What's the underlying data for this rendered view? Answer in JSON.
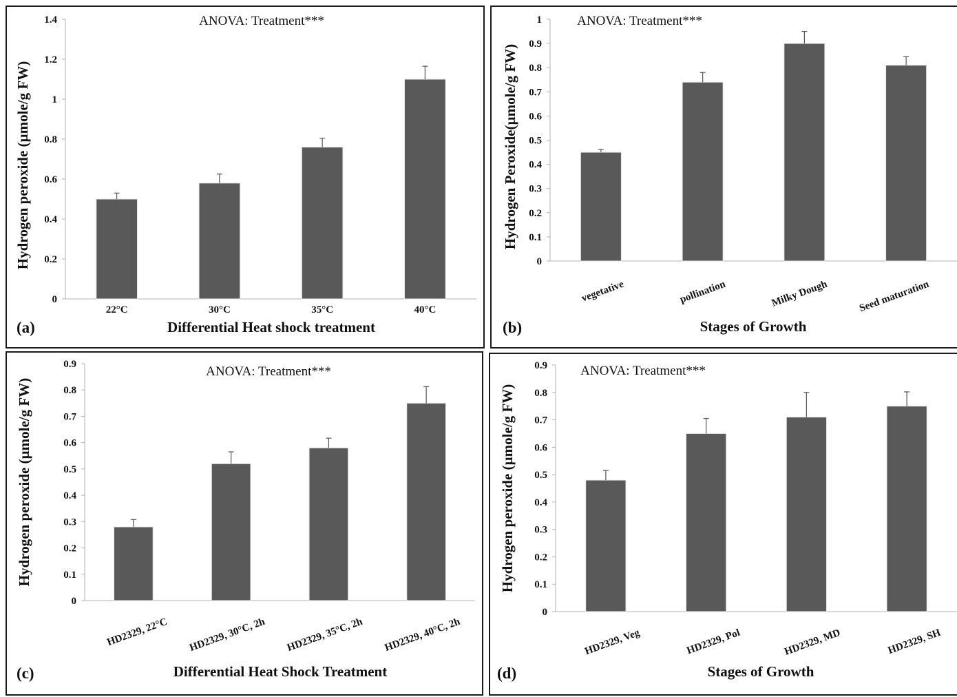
{
  "chart_data": [
    {
      "panel_label": "(a)",
      "type": "bar",
      "annotation": "ANOVA: Treatment***",
      "title": "",
      "xlabel": "Differential Heat shock treatment",
      "ylabel": "Hydrogen peroxide (µmole/g FW)",
      "categories": [
        "22°C",
        "30°C",
        "35°C",
        "40°C"
      ],
      "values": [
        0.5,
        0.58,
        0.76,
        1.1
      ],
      "errors": [
        0.03,
        0.045,
        0.045,
        0.065
      ],
      "ylim": [
        0,
        1.4
      ],
      "yticks": [
        "0",
        "0.2",
        "0.4",
        "0.6",
        "0.8",
        "1",
        "1.2",
        "1.4"
      ],
      "tick_label_rotation": 0,
      "bar_color": "#595959",
      "grid": false
    },
    {
      "panel_label": "(b)",
      "type": "bar",
      "annotation": "ANOVA: Treatment***",
      "title": "",
      "xlabel": "Stages of Growth",
      "ylabel": "Hydrogen Peroxide(µmole/g FW)",
      "categories": [
        "vegetative",
        "pollination",
        "Milky Dough",
        "Seed maturation"
      ],
      "values": [
        0.45,
        0.74,
        0.9,
        0.81
      ],
      "errors": [
        0.012,
        0.04,
        0.05,
        0.035
      ],
      "ylim": [
        0,
        1
      ],
      "yticks": [
        "0",
        "0.1",
        "0.2",
        "0.3",
        "0.4",
        "0.5",
        "0.6",
        "0.7",
        "0.8",
        "0.9",
        "1"
      ],
      "tick_label_rotation": -20,
      "bar_color": "#595959",
      "grid": false
    },
    {
      "panel_label": "(c)",
      "type": "bar",
      "annotation": "ANOVA: Treatment***",
      "title": "",
      "xlabel": "Differential Heat Shock Treatment",
      "ylabel": "Hydrogen peroxide (µmole/g FW)",
      "categories": [
        "HD2329, 22°C",
        "HD2329, 30°C, 2h",
        "HD2329, 35°C, 2h",
        "HD2329, 40°C, 2h"
      ],
      "values": [
        0.28,
        0.52,
        0.58,
        0.75
      ],
      "errors": [
        0.028,
        0.045,
        0.037,
        0.063
      ],
      "ylim": [
        0,
        0.9
      ],
      "yticks": [
        "0",
        "0.1",
        "0.2",
        "0.3",
        "0.4",
        "0.5",
        "0.6",
        "0.7",
        "0.8",
        "0.9"
      ],
      "tick_label_rotation": -20,
      "bar_color": "#595959",
      "grid": false
    },
    {
      "panel_label": "(d)",
      "type": "bar",
      "annotation": "ANOVA: Treatment***",
      "title": "",
      "xlabel": "Stages of Growth",
      "ylabel": "Hydrogen peroxide (µmole/g FW)",
      "categories": [
        "HD2329, Veg",
        "HD2329, Pol",
        "HD2329, MD",
        "HD2329, SH"
      ],
      "values": [
        0.48,
        0.65,
        0.71,
        0.75
      ],
      "errors": [
        0.035,
        0.055,
        0.09,
        0.052
      ],
      "ylim": [
        0,
        0.9
      ],
      "yticks": [
        "0",
        "0.1",
        "0.2",
        "0.3",
        "0.4",
        "0.5",
        "0.6",
        "0.7",
        "0.8",
        "0.9"
      ],
      "tick_label_rotation": -20,
      "bar_color": "#595959",
      "grid": false
    }
  ]
}
